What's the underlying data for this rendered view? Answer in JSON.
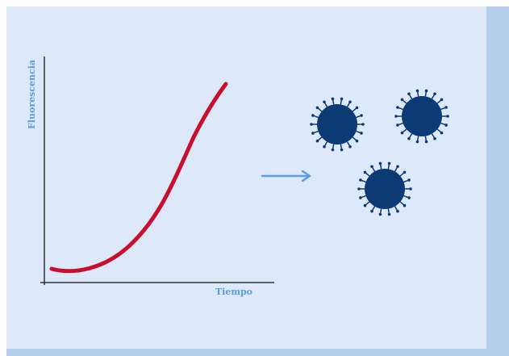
{
  "axes": {
    "y_label": "Fluorescencia",
    "x_label": "Tiempo"
  }
}
